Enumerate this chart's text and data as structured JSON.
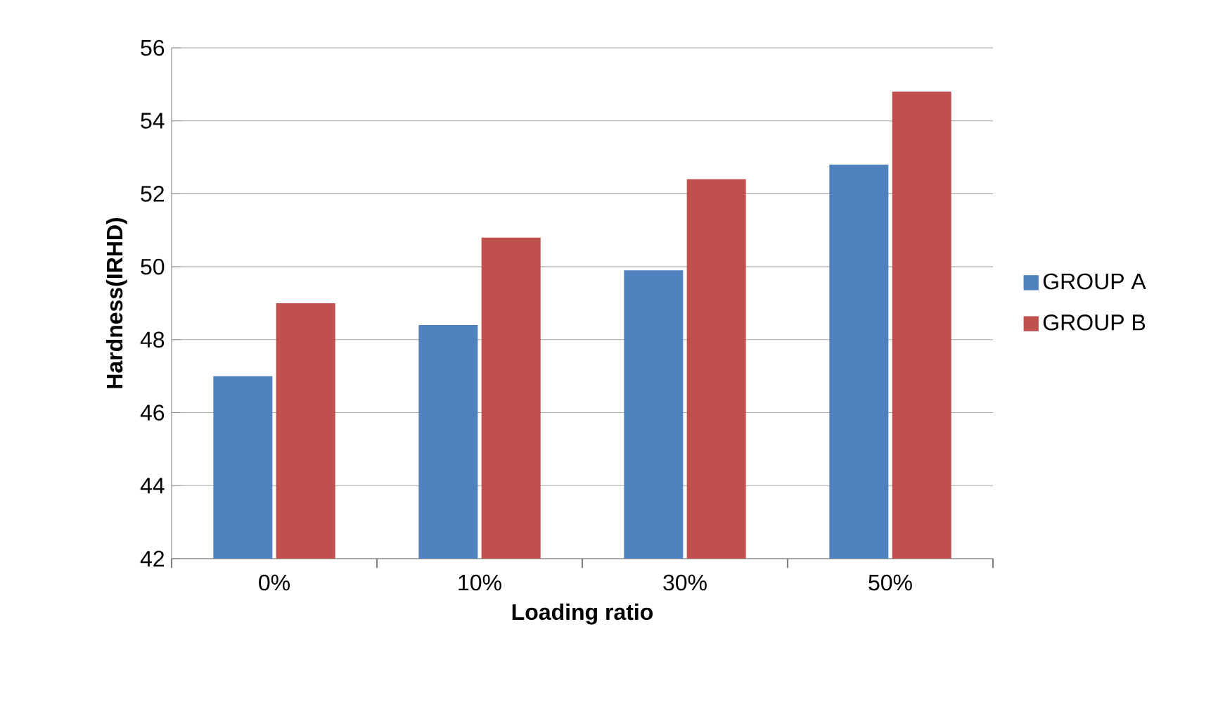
{
  "chart_data": {
    "type": "bar",
    "xlabel": "Loading ratio",
    "ylabel": "Hardness(IRHD)",
    "categories": [
      "0%",
      "10%",
      "30%",
      "50%"
    ],
    "series": [
      {
        "name": "GROUP A",
        "color": "#4f81bd",
        "values": [
          47.0,
          48.4,
          49.9,
          52.8
        ]
      },
      {
        "name": "GROUP B",
        "color": "#c0504d",
        "values": [
          49.0,
          50.8,
          52.4,
          54.8
        ]
      }
    ],
    "ylim": [
      42,
      56
    ],
    "yticks": [
      42,
      44,
      46,
      48,
      50,
      52,
      54,
      56
    ],
    "grid": "y",
    "legend": "right"
  }
}
